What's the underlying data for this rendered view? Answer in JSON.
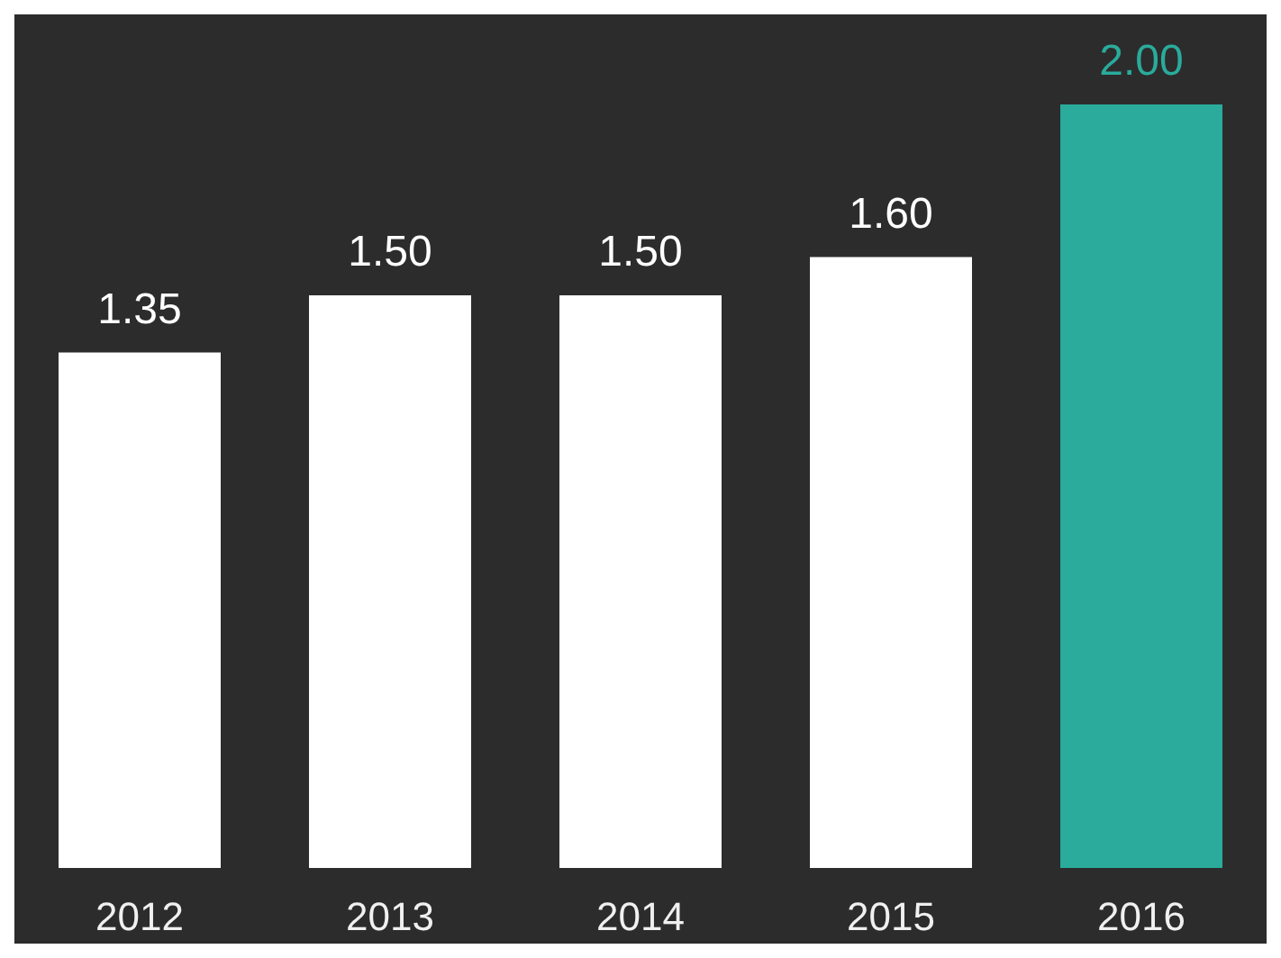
{
  "chart_data": {
    "type": "bar",
    "categories": [
      "2012",
      "2013",
      "2014",
      "2015",
      "2016"
    ],
    "values": [
      1.35,
      1.5,
      1.5,
      1.6,
      2.0
    ],
    "colors": [
      "#ffffff",
      "#ffffff",
      "#ffffff",
      "#ffffff",
      "#2aab9c"
    ],
    "value_labels": [
      "1.35",
      "1.50",
      "1.50",
      "1.60",
      "2.00"
    ]
  }
}
